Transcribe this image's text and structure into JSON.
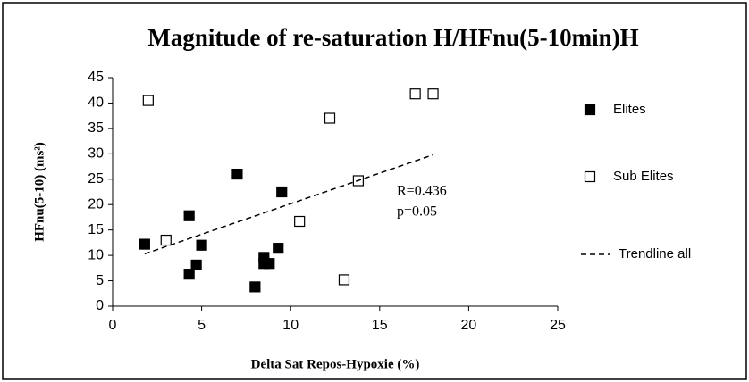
{
  "chart_data": {
    "type": "scatter",
    "title": "Magnitude of re-saturation H/HFnu(5-10min)H",
    "x_label": "Delta Sat Repos-Hypoxie (%)",
    "y_label": "HFnu(5-10) (ms²)",
    "xlim": [
      0,
      25
    ],
    "xticks": [
      0,
      5,
      10,
      15,
      20,
      25
    ],
    "ylim": [
      0,
      45
    ],
    "yticks": [
      0,
      5,
      10,
      15,
      20,
      25,
      30,
      35,
      40,
      45
    ],
    "grid": false,
    "legend": "right",
    "annotations": [
      "R=0.436",
      "p=0.05"
    ],
    "series": [
      {
        "name": "Elites",
        "style": "filled",
        "color": "#000000",
        "x": [
          1.8,
          4.3,
          4.3,
          4.7,
          5.0,
          7.0,
          8.0,
          8.5,
          8.5,
          8.8,
          9.3,
          9.5
        ],
        "values": [
          12.2,
          17.8,
          6.3,
          8.1,
          12.0,
          26.0,
          3.8,
          9.6,
          8.4,
          8.4,
          11.4,
          22.5
        ]
      },
      {
        "name": "Sub Elites",
        "style": "open",
        "color": "#000000",
        "x": [
          2.0,
          3.0,
          10.5,
          12.2,
          13.0,
          13.8,
          17.0,
          18.0
        ],
        "values": [
          40.5,
          13.0,
          16.7,
          37.0,
          5.2,
          24.7,
          41.8,
          41.8
        ]
      },
      {
        "name": "Trendline all",
        "style": "dashed",
        "color": "#000000",
        "x": [
          1.8,
          18.0
        ],
        "values": [
          10.3,
          29.8
        ]
      }
    ]
  }
}
